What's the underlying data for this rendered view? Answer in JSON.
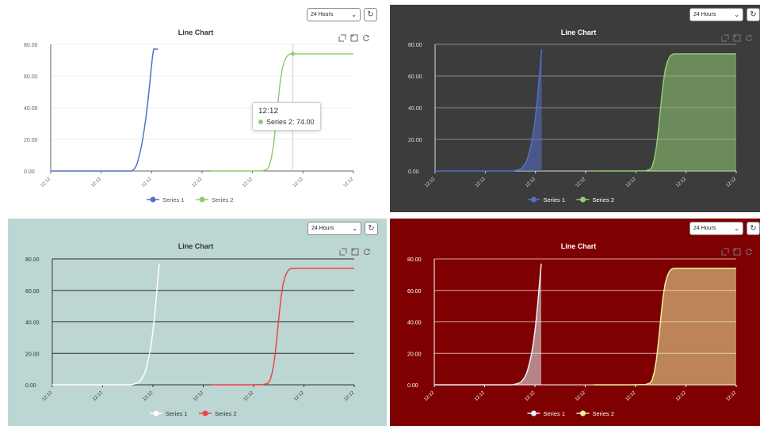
{
  "controls": {
    "range_label": "24 Hours",
    "refresh_icon": "refresh-icon",
    "range_chevron_icon": "chevron-down-icon"
  },
  "toolbox_icons": [
    "zoom-icon",
    "zoom-reset-icon",
    "restore-icon"
  ],
  "tooltip": {
    "time": "12:12",
    "series": "Series 2",
    "value": "74.00"
  },
  "themes": {
    "white": {
      "bg": "#ffffff",
      "axis": "#666666",
      "grid": "#eeeeee",
      "title": "#333333",
      "s1": "#5470c6",
      "s2": "#91cc75",
      "legend": "#555555"
    },
    "dark": {
      "bg": "#3c3c3c",
      "axis": "#dddddd",
      "grid": "#8a8a8a",
      "title": "#ffffff",
      "s1": "#5470c6",
      "s2": "#91cc75",
      "legend": "#ffffff"
    },
    "teal": {
      "bg": "#bcd6d4",
      "axis": "#333333",
      "grid": "#2b2b2b",
      "title": "#333333",
      "s1": "#ffffff",
      "s2": "#ee4444",
      "legend": "#333333"
    },
    "red": {
      "bg": "#7e0000",
      "axis": "#ffffff",
      "grid": "#d8a8a8",
      "title": "#ffffff",
      "s1": "#e8f0f8",
      "s2": "#eef0a0",
      "legend": "#ffffff"
    }
  },
  "chart_data": [
    {
      "type": "line",
      "title": "Line Chart",
      "theme": "white",
      "area": false,
      "x_tick_labels": [
        "12:12",
        "12:12",
        "12:12",
        "12:12",
        "12:12",
        "12:12",
        "12:12"
      ],
      "ylim": [
        0,
        80
      ],
      "y_ticks": [
        "0.00",
        "20.00",
        "40.00",
        "60.00",
        "80.00"
      ],
      "series": [
        {
          "name": "Series 1",
          "x": [
            0.0,
            0.3,
            0.4,
            0.45,
            0.5,
            0.55,
            0.58,
            0.62,
            0.65,
            0.68,
            0.7,
            0.72,
            0.75,
            0.78,
            0.8,
            0.82,
            0.85,
            0.88,
            0.9,
            0.92,
            0.95,
            0.98,
            1.0,
            1.02,
            1.05,
            1.08,
            1.1,
            1.12,
            1.15,
            1.18,
            1.2,
            1.22,
            1.25,
            1.27,
            1.3,
            1.32,
            1.35,
            1.38,
            1.4,
            1.42,
            1.45,
            1.48,
            1.5,
            1.52,
            1.55,
            1.58,
            1.6,
            1.62,
            1.65,
            1.67,
            1.7,
            1.72,
            1.75,
            1.78,
            1.8,
            1.82,
            1.85,
            1.88,
            1.9,
            1.92,
            1.95,
            1.98,
            2.0,
            2.02,
            2.05,
            2.08,
            2.1,
            2.12,
            2.15,
            2.18,
            2.2,
            2.22,
            2.25,
            2.28,
            2.3,
            2.32,
            2.35,
            2.38,
            2.4,
            2.42,
            2.45,
            2.48
          ],
          "y": [
            0.0,
            0.0,
            0.0,
            0.0,
            0.0,
            0.0,
            0.0,
            0.0,
            0.0,
            0.0,
            0.0,
            0.0,
            0.0,
            0.0,
            0.0,
            0.0,
            0.0,
            0.0,
            0.0,
            0.0,
            0.0,
            0.0,
            0.0,
            0.0,
            0.0,
            0.0,
            0.0,
            0.0,
            0.0,
            0.0,
            0.0,
            0.0,
            0.0,
            0.0,
            0.0,
            0.0,
            0.0,
            0.0,
            0.0,
            0.0,
            0.0,
            0.0,
            0.0,
            0.0,
            0.0,
            0.0,
            0.0,
            0.0,
            0.0,
            0.0,
            0.0,
            0.0,
            0.0,
            0.0,
            0.0,
            0.0,
            0.05,
            0.2,
            0.5,
            1.0,
            2.0,
            3.5,
            5.0,
            7.0,
            10.0,
            13.5,
            16.0,
            19.0,
            24.0,
            29.5,
            33.5,
            38.0,
            45.0,
            52.5,
            58.0,
            63.5,
            71.5,
            77.0,
            77.0,
            77.0,
            77.0,
            77.0
          ]
        },
        {
          "name": "Series 2",
          "x": [
            3.7,
            4.0,
            4.3,
            4.6,
            4.9,
            5.0,
            5.05,
            5.1,
            5.15,
            5.2,
            5.25,
            5.3,
            5.35,
            5.4,
            5.45,
            5.5,
            5.55,
            5.6,
            5.7,
            5.8,
            6.0,
            6.3,
            6.6,
            7.0
          ],
          "y": [
            0,
            0,
            0,
            0,
            0.2,
            1,
            3,
            8,
            16,
            28,
            42,
            55,
            64,
            69,
            72,
            73.5,
            74,
            74,
            74,
            74,
            74,
            74,
            74,
            74
          ]
        }
      ]
    },
    {
      "type": "area",
      "title": "Line Chart",
      "theme": "dark",
      "area": true,
      "x_tick_labels": [
        "12:12",
        "12:12",
        "12:12",
        "12:12",
        "12:12",
        "12:12",
        "12:12"
      ],
      "ylim": [
        0,
        80
      ],
      "y_ticks": [
        "0.00",
        "20.00",
        "40.00",
        "60.00",
        "80.00"
      ],
      "series": [
        {
          "name": "Series 1",
          "x": [
            0.0,
            0.3,
            0.6,
            0.9,
            1.2,
            1.5,
            1.8,
            1.9,
            2.0,
            2.05,
            2.1,
            2.15,
            2.2,
            2.25,
            2.3,
            2.35,
            2.4,
            2.45,
            2.48
          ],
          "y": [
            0,
            0,
            0,
            0,
            0,
            0,
            0,
            0.5,
            1.5,
            3,
            5,
            8,
            13,
            19,
            27,
            38,
            52,
            68,
            77
          ]
        },
        {
          "name": "Series 2",
          "x": [
            3.7,
            4.0,
            4.3,
            4.6,
            4.9,
            5.0,
            5.05,
            5.1,
            5.15,
            5.2,
            5.25,
            5.3,
            5.35,
            5.4,
            5.45,
            5.5,
            5.55,
            5.6,
            5.7,
            5.8,
            6.0,
            6.3,
            6.6,
            7.0
          ],
          "y": [
            0,
            0,
            0,
            0,
            0.2,
            1,
            3,
            8,
            16,
            28,
            42,
            55,
            64,
            69,
            72,
            73.5,
            74,
            74,
            74,
            74,
            74,
            74,
            74,
            74
          ]
        }
      ]
    },
    {
      "type": "line",
      "title": "Line Chart",
      "theme": "teal",
      "area": false,
      "x_tick_labels": [
        "12:12",
        "12:12",
        "12:12",
        "12:12",
        "12:12",
        "12:12",
        "12:12"
      ],
      "ylim": [
        0,
        80
      ],
      "y_ticks": [
        "0.00",
        "20.00",
        "40.00",
        "60.00",
        "80.00"
      ],
      "series": [
        {
          "name": "Series 1",
          "x": [
            0.0,
            0.3,
            0.6,
            0.9,
            1.2,
            1.5,
            1.8,
            1.9,
            2.0,
            2.05,
            2.1,
            2.15,
            2.2,
            2.25,
            2.3,
            2.35,
            2.4,
            2.45,
            2.48
          ],
          "y": [
            0,
            0,
            0,
            0,
            0,
            0,
            0,
            0.5,
            1.5,
            3,
            5,
            8,
            13,
            19,
            27,
            38,
            52,
            68,
            77
          ]
        },
        {
          "name": "Series 2",
          "x": [
            3.7,
            4.0,
            4.3,
            4.6,
            4.9,
            5.0,
            5.05,
            5.1,
            5.15,
            5.2,
            5.25,
            5.3,
            5.35,
            5.4,
            5.45,
            5.5,
            5.55,
            5.6,
            5.7,
            5.8,
            6.0,
            6.3,
            6.6,
            7.0
          ],
          "y": [
            0,
            0,
            0,
            0,
            0.2,
            1,
            3,
            8,
            16,
            28,
            42,
            55,
            64,
            69,
            72,
            73.5,
            74,
            74,
            74,
            74,
            74,
            74,
            74,
            74
          ]
        }
      ]
    },
    {
      "type": "area",
      "title": "Line Chart",
      "theme": "red",
      "area": true,
      "x_tick_labels": [
        "12:12",
        "12:12",
        "12:12",
        "12:12",
        "12:12",
        "12:12",
        "12:12"
      ],
      "ylim": [
        0,
        80
      ],
      "y_ticks": [
        "0.00",
        "20.00",
        "40.00",
        "60.00",
        "80.00"
      ],
      "series": [
        {
          "name": "Series 1",
          "x": [
            0.0,
            0.3,
            0.6,
            0.9,
            1.2,
            1.5,
            1.8,
            1.9,
            2.0,
            2.05,
            2.1,
            2.15,
            2.2,
            2.25,
            2.3,
            2.35,
            2.4,
            2.45,
            2.48
          ],
          "y": [
            0,
            0,
            0,
            0,
            0,
            0,
            0,
            0.5,
            1.5,
            3,
            5,
            8,
            13,
            19,
            27,
            38,
            52,
            68,
            77
          ]
        },
        {
          "name": "Series 2",
          "x": [
            3.7,
            4.0,
            4.3,
            4.6,
            4.9,
            5.0,
            5.05,
            5.1,
            5.15,
            5.2,
            5.25,
            5.3,
            5.35,
            5.4,
            5.45,
            5.5,
            5.55,
            5.6,
            5.7,
            5.8,
            6.0,
            6.3,
            6.6,
            7.0
          ],
          "y": [
            0,
            0,
            0,
            0,
            0.2,
            1,
            3,
            8,
            16,
            28,
            42,
            55,
            64,
            69,
            72,
            73.5,
            74,
            74,
            74,
            74,
            74,
            74,
            74,
            74
          ]
        }
      ]
    }
  ]
}
